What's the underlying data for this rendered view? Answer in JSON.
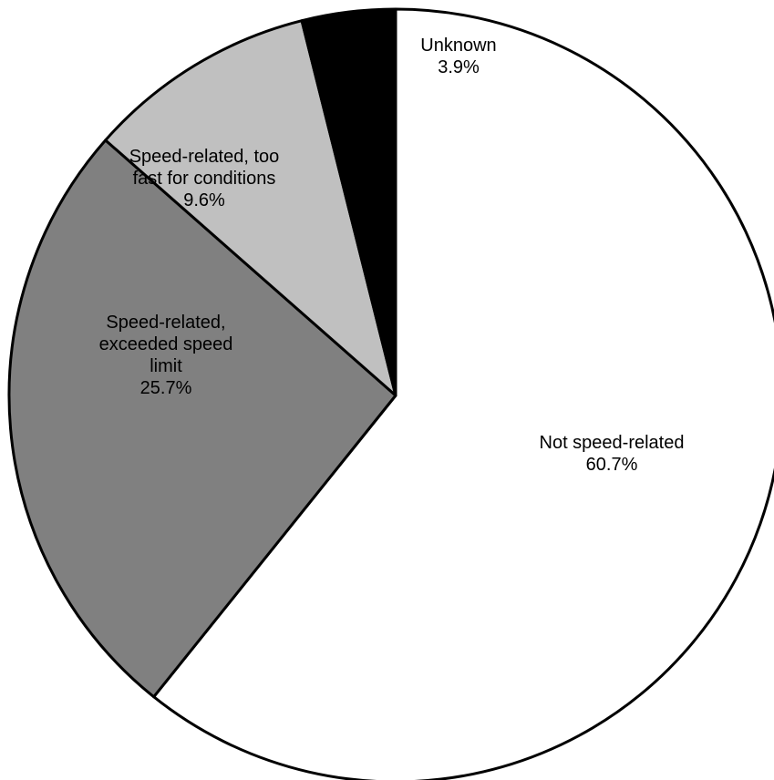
{
  "chart_data": {
    "type": "pie",
    "title": "",
    "slices": [
      {
        "label": [
          "Not speed-related",
          "60.7%"
        ],
        "name": "Not speed-related",
        "value": 60.7,
        "color": "#ffffff"
      },
      {
        "label": [
          "Speed-related,",
          "exceeded speed",
          "limit",
          "25.7%"
        ],
        "name": "Speed-related, exceeded speed limit",
        "value": 25.7,
        "color": "#808080"
      },
      {
        "label": [
          "Speed-related, too",
          "fast for conditions",
          "9.6%"
        ],
        "name": "Speed-related, too fast for conditions",
        "value": 9.6,
        "color": "#c0c0c0"
      },
      {
        "label": [
          "Unknown",
          "3.9%"
        ],
        "name": "Unknown",
        "value": 3.9,
        "color": "#000000"
      }
    ]
  }
}
